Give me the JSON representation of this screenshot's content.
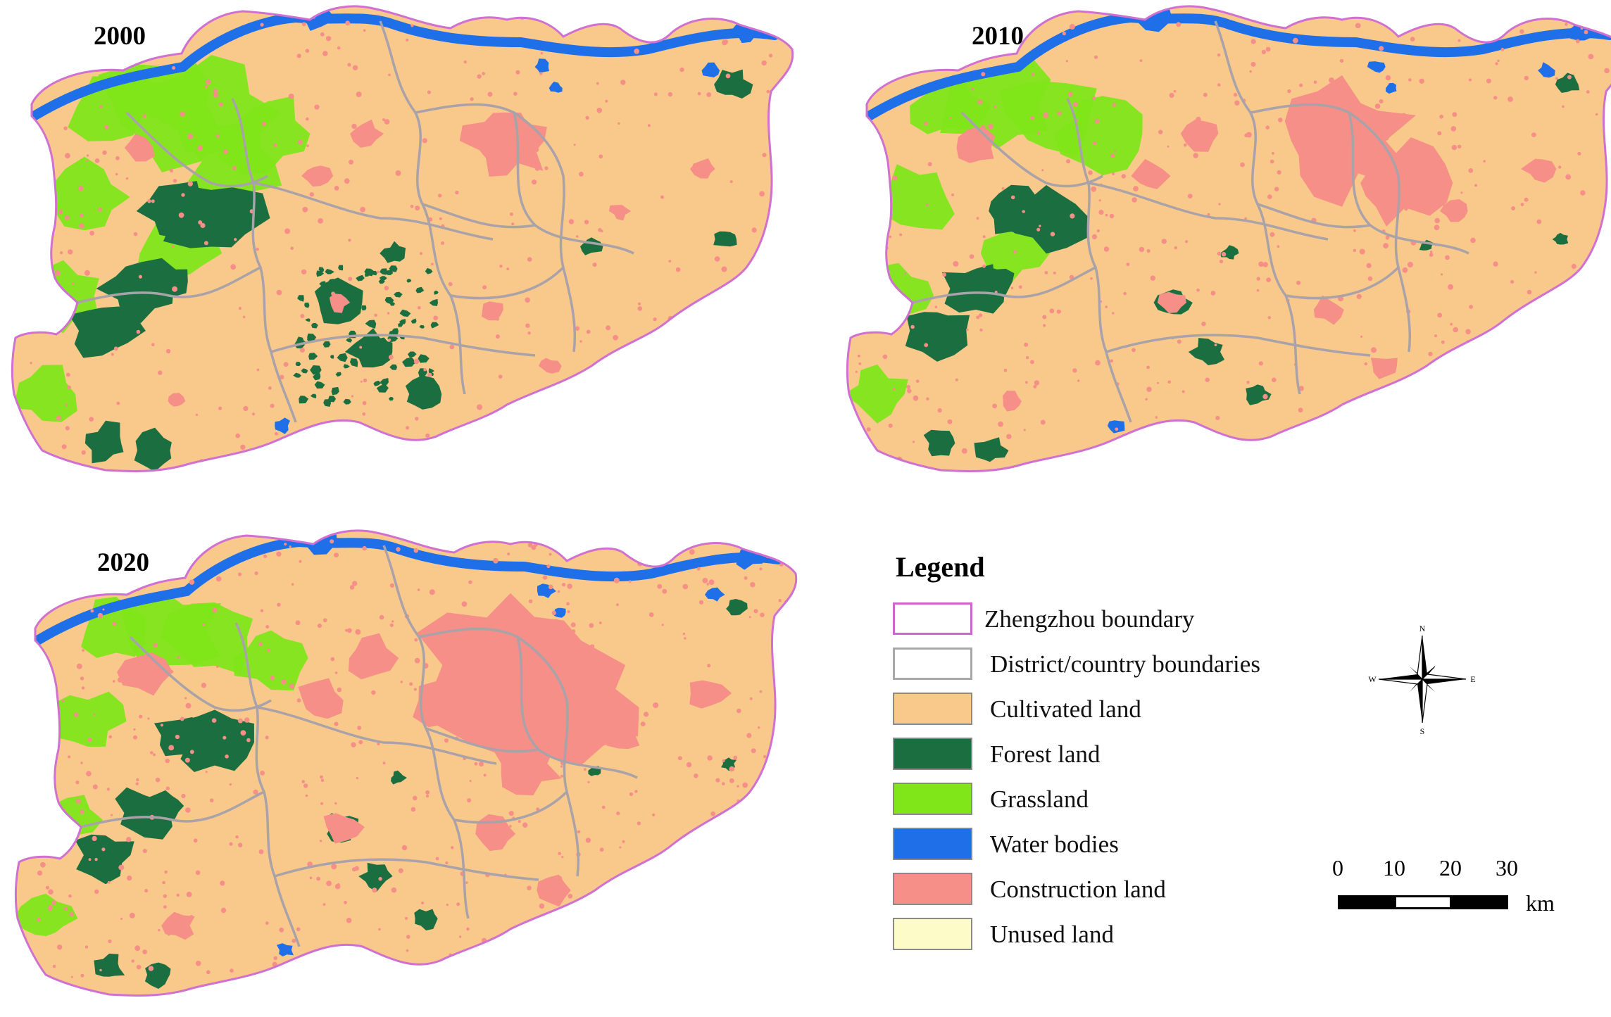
{
  "maps": [
    {
      "year": "2000",
      "construction_extent": 0.2,
      "forest_extent": 1.0,
      "grass_extent": 1.0
    },
    {
      "year": "2010",
      "construction_extent": 0.55,
      "forest_extent": 0.85,
      "grass_extent": 0.75
    },
    {
      "year": "2020",
      "construction_extent": 1.0,
      "forest_extent": 0.8,
      "grass_extent": 0.6
    }
  ],
  "legend": {
    "title": "Legend",
    "items": [
      {
        "label": "Zhengzhou boundary",
        "fill": "#ffffff",
        "border": "#cc66cc",
        "icon": "boundary-outline"
      },
      {
        "label": "District/country boundaries",
        "fill": "#ffffff",
        "border": "#a8a8a8",
        "icon": "boundary-outline"
      },
      {
        "label": "Cultivated land",
        "fill": "#f9c98b",
        "border": "#8a8a8a"
      },
      {
        "label": "Forest land",
        "fill": "#1a6e3f",
        "border": "#8a8a8a"
      },
      {
        "label": "Grassland",
        "fill": "#80e61a",
        "border": "#8a8a8a"
      },
      {
        "label": "Water bodies",
        "fill": "#1e6fe8",
        "border": "#8a8a8a"
      },
      {
        "label": "Construction land",
        "fill": "#f58f88",
        "border": "#8a8a8a"
      },
      {
        "label": "Unused land",
        "fill": "#fdfbc8",
        "border": "#8a8a8a"
      }
    ]
  },
  "compass": {
    "n": "N",
    "s": "S",
    "e": "E",
    "w": "W"
  },
  "scale": {
    "ticks": [
      "0",
      "10",
      "20",
      "30"
    ],
    "unit": "km"
  },
  "colors": {
    "cultivated": "#f9c98b",
    "forest": "#1a6e3f",
    "grassland": "#80e61a",
    "water": "#1e6fe8",
    "construction": "#f58f88",
    "city_boundary": "#d070d0",
    "district_boundary": "#a9a2a8"
  }
}
